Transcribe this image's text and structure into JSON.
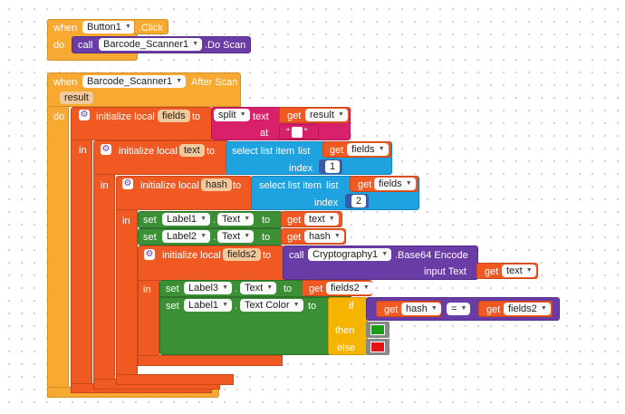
{
  "kw": {
    "when": "when",
    "do": "do",
    "in": "in",
    "call": "call",
    "set": "set",
    "to": "to",
    "get": "get",
    "at": "at",
    "index": "index",
    "if": "if",
    "then": "then",
    "else": "else",
    "dot": ".",
    "init_local": "initialize local",
    "eq": "="
  },
  "block1": {
    "component": "Button1",
    "event": ".Click",
    "call_component": "Barcode_Scanner1",
    "call_method": ".Do Scan"
  },
  "block2": {
    "component": "Barcode_Scanner1",
    "event": "After Scan",
    "param": "result",
    "var_fields": "fields",
    "split_op": "split",
    "split_text_label": "text",
    "split_text_var": "result",
    "split_at_value": " ",
    "var_text": "text",
    "select_list_item": "select list item",
    "list_label": "list",
    "list_var1": "fields",
    "index1": "1",
    "var_hash": "hash",
    "list_var2": "fields",
    "index2": "2",
    "set_a_comp": "Label1",
    "set_a_prop": "Text",
    "set_a_var": "text",
    "set_b_comp": "Label2",
    "set_b_prop": "Text",
    "set_b_var": "hash",
    "var_fields2": "fields2",
    "crypto_comp": "Cryptography1",
    "crypto_method": ".Base64 Encode",
    "input_text_label": "input Text",
    "crypto_arg": "text",
    "set_c_comp": "Label3",
    "set_c_prop": "Text",
    "set_c_var": "fields2",
    "set_d_comp": "Label1",
    "set_d_prop": "Text Color",
    "cmp_left": "hash",
    "cmp_right": "fields2",
    "then_color": "#1a9c1a",
    "else_color": "#e21414"
  }
}
